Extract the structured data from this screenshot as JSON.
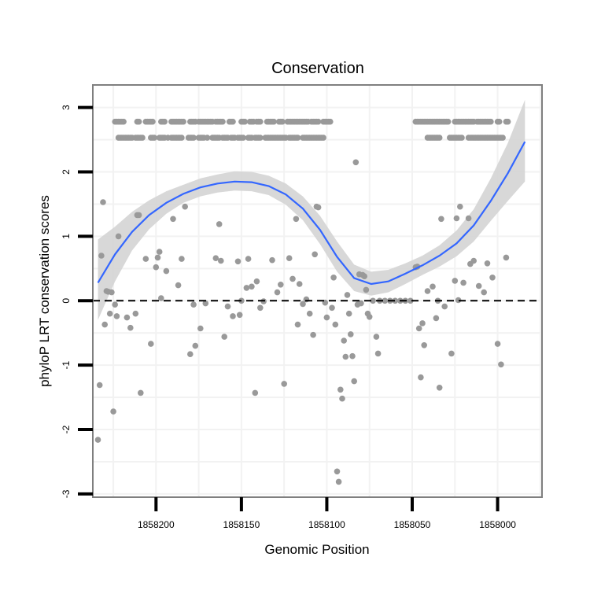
{
  "chart_data": {
    "type": "scatter",
    "title": "Conservation",
    "xlabel": "Genomic Position",
    "ylabel": "phyloP LRT conservation scores",
    "x_reversed": true,
    "xlim": [
      1858237,
      1857974
    ],
    "ylim": [
      -3.05,
      3.35
    ],
    "x_ticks": [
      1858200,
      1858150,
      1858100,
      1858050,
      1858000
    ],
    "x_tick_labels": [
      "1858200",
      "1858150",
      "1858100",
      "1858050",
      "1858000"
    ],
    "y_ticks": [
      3,
      2,
      1,
      0,
      -1,
      -2,
      -3
    ],
    "y_tick_labels": [
      "3",
      "2",
      "1",
      "0",
      "-1",
      "-2",
      "-3"
    ],
    "reference_line": {
      "y": 0,
      "style": "dashed"
    },
    "grid": true,
    "colors": {
      "points": "#999999",
      "smooth_line": "#3366ff",
      "confidence_band": "#d4d4d4",
      "panel_border": "#7f7f7f",
      "grid": "#f2f2f2"
    },
    "smooth": {
      "x": [
        1858234,
        1858224,
        1858214,
        1858204,
        1858194,
        1858184,
        1858174,
        1858164,
        1858154,
        1858144,
        1858134,
        1858124,
        1858114,
        1858104,
        1858094,
        1858084,
        1858074,
        1858064,
        1858054,
        1858044,
        1858034,
        1858024,
        1858014,
        1858004,
        1857994,
        1857984
      ],
      "y": [
        0.28,
        0.72,
        1.07,
        1.33,
        1.52,
        1.66,
        1.76,
        1.82,
        1.85,
        1.84,
        1.78,
        1.65,
        1.43,
        1.1,
        0.68,
        0.35,
        0.26,
        0.3,
        0.42,
        0.55,
        0.7,
        0.89,
        1.17,
        1.55,
        1.98,
        2.47
      ],
      "lower": [
        -0.3,
        0.3,
        0.78,
        1.11,
        1.35,
        1.52,
        1.62,
        1.68,
        1.71,
        1.7,
        1.64,
        1.49,
        1.25,
        0.88,
        0.45,
        0.15,
        0.08,
        0.13,
        0.26,
        0.4,
        0.53,
        0.69,
        0.92,
        1.24,
        1.55,
        1.85
      ],
      "upper": [
        0.95,
        1.15,
        1.38,
        1.56,
        1.7,
        1.8,
        1.9,
        1.96,
        2.01,
        2.0,
        1.94,
        1.82,
        1.62,
        1.32,
        0.92,
        0.56,
        0.45,
        0.48,
        0.58,
        0.7,
        0.86,
        1.09,
        1.42,
        1.9,
        2.45,
        3.12
      ]
    },
    "points": [
      {
        "x": 1858234,
        "y": -2.16
      },
      {
        "x": 1858233,
        "y": -1.31
      },
      {
        "x": 1858232,
        "y": 0.7
      },
      {
        "x": 1858231,
        "y": 1.53
      },
      {
        "x": 1858230,
        "y": -0.37
      },
      {
        "x": 1858229,
        "y": 0.15
      },
      {
        "x": 1858228,
        "y": 0.14
      },
      {
        "x": 1858227,
        "y": -0.2
      },
      {
        "x": 1858226,
        "y": 0.13
      },
      {
        "x": 1858225,
        "y": -1.72
      },
      {
        "x": 1858224,
        "y": -0.06
      },
      {
        "x": 1858223,
        "y": -0.24
      },
      {
        "x": 1858222,
        "y": 1.0
      },
      {
        "x": 1858217,
        "y": -0.26
      },
      {
        "x": 1858215,
        "y": -0.42
      },
      {
        "x": 1858212,
        "y": -0.2
      },
      {
        "x": 1858211,
        "y": 1.33
      },
      {
        "x": 1858210,
        "y": 1.33
      },
      {
        "x": 1858209,
        "y": -1.43
      },
      {
        "x": 1858206,
        "y": 0.65
      },
      {
        "x": 1858203,
        "y": -0.67
      },
      {
        "x": 1858200,
        "y": 0.52
      },
      {
        "x": 1858199,
        "y": 0.67
      },
      {
        "x": 1858198,
        "y": 0.76
      },
      {
        "x": 1858197,
        "y": 0.04
      },
      {
        "x": 1858194,
        "y": 0.46
      },
      {
        "x": 1858190,
        "y": 1.27
      },
      {
        "x": 1858187,
        "y": 0.24
      },
      {
        "x": 1858185,
        "y": 0.65
      },
      {
        "x": 1858183,
        "y": 1.46
      },
      {
        "x": 1858180,
        "y": -0.83
      },
      {
        "x": 1858178,
        "y": -0.06
      },
      {
        "x": 1858177,
        "y": -0.7
      },
      {
        "x": 1858174,
        "y": -0.43
      },
      {
        "x": 1858171,
        "y": -0.04
      },
      {
        "x": 1858165,
        "y": 0.66
      },
      {
        "x": 1858163,
        "y": 1.19
      },
      {
        "x": 1858162,
        "y": 0.62
      },
      {
        "x": 1858160,
        "y": -0.56
      },
      {
        "x": 1858158,
        "y": -0.09
      },
      {
        "x": 1858155,
        "y": -0.24
      },
      {
        "x": 1858152,
        "y": 0.61
      },
      {
        "x": 1858151,
        "y": -0.22
      },
      {
        "x": 1858150,
        "y": 0.0
      },
      {
        "x": 1858147,
        "y": 0.2
      },
      {
        "x": 1858146,
        "y": 0.65
      },
      {
        "x": 1858144,
        "y": 0.22
      },
      {
        "x": 1858142,
        "y": -1.43
      },
      {
        "x": 1858141,
        "y": 0.3
      },
      {
        "x": 1858139,
        "y": -0.11
      },
      {
        "x": 1858137,
        "y": -0.01
      },
      {
        "x": 1858132,
        "y": 0.63
      },
      {
        "x": 1858129,
        "y": 0.13
      },
      {
        "x": 1858127,
        "y": 0.25
      },
      {
        "x": 1858125,
        "y": -1.29
      },
      {
        "x": 1858122,
        "y": 0.66
      },
      {
        "x": 1858120,
        "y": 0.34
      },
      {
        "x": 1858118,
        "y": 1.27
      },
      {
        "x": 1858117,
        "y": -0.37
      },
      {
        "x": 1858116,
        "y": 0.26
      },
      {
        "x": 1858114,
        "y": -0.05
      },
      {
        "x": 1858112,
        "y": 0.02
      },
      {
        "x": 1858110,
        "y": -0.2
      },
      {
        "x": 1858108,
        "y": -0.53
      },
      {
        "x": 1858107,
        "y": 0.72
      },
      {
        "x": 1858106,
        "y": 1.46
      },
      {
        "x": 1858105,
        "y": 1.45
      },
      {
        "x": 1858101,
        "y": -0.03
      },
      {
        "x": 1858100,
        "y": -0.26
      },
      {
        "x": 1858097,
        "y": -0.11
      },
      {
        "x": 1858096,
        "y": 0.36
      },
      {
        "x": 1858095,
        "y": -0.37
      },
      {
        "x": 1858094,
        "y": -2.65
      },
      {
        "x": 1858093,
        "y": -2.81
      },
      {
        "x": 1858092,
        "y": -1.38
      },
      {
        "x": 1858091,
        "y": -1.52
      },
      {
        "x": 1858090,
        "y": -0.62
      },
      {
        "x": 1858089,
        "y": -0.87
      },
      {
        "x": 1858088,
        "y": 0.09
      },
      {
        "x": 1858087,
        "y": -0.2
      },
      {
        "x": 1858086,
        "y": -0.52
      },
      {
        "x": 1858085,
        "y": -0.86
      },
      {
        "x": 1858084,
        "y": -1.25
      },
      {
        "x": 1858083,
        "y": 2.15
      },
      {
        "x": 1858082,
        "y": -0.06
      },
      {
        "x": 1858081,
        "y": 0.41
      },
      {
        "x": 1858080,
        "y": -0.04
      },
      {
        "x": 1858079,
        "y": 0.4
      },
      {
        "x": 1858078,
        "y": 0.38
      },
      {
        "x": 1858077,
        "y": 0.17
      },
      {
        "x": 1858076,
        "y": -0.2
      },
      {
        "x": 1858075,
        "y": -0.25
      },
      {
        "x": 1858073,
        "y": 0.0
      },
      {
        "x": 1858071,
        "y": -0.56
      },
      {
        "x": 1858070,
        "y": -0.82
      },
      {
        "x": 1858069,
        "y": 0.0
      },
      {
        "x": 1858066,
        "y": 0.0
      },
      {
        "x": 1858063,
        "y": 0.0
      },
      {
        "x": 1858060,
        "y": 0.0
      },
      {
        "x": 1858057,
        "y": 0.0
      },
      {
        "x": 1858054,
        "y": 0.0
      },
      {
        "x": 1858051,
        "y": 0.0
      },
      {
        "x": 1858048,
        "y": 0.52
      },
      {
        "x": 1858047,
        "y": 0.53
      },
      {
        "x": 1858046,
        "y": -0.43
      },
      {
        "x": 1858045,
        "y": -1.19
      },
      {
        "x": 1858044,
        "y": -0.35
      },
      {
        "x": 1858043,
        "y": -0.69
      },
      {
        "x": 1858041,
        "y": 0.15
      },
      {
        "x": 1858038,
        "y": 0.22
      },
      {
        "x": 1858036,
        "y": -0.27
      },
      {
        "x": 1858035,
        "y": 0.0
      },
      {
        "x": 1858034,
        "y": -1.35
      },
      {
        "x": 1858033,
        "y": 1.27
      },
      {
        "x": 1858031,
        "y": -0.09
      },
      {
        "x": 1858027,
        "y": -0.82
      },
      {
        "x": 1858025,
        "y": 0.31
      },
      {
        "x": 1858024,
        "y": 1.28
      },
      {
        "x": 1858023,
        "y": 0.01
      },
      {
        "x": 1858022,
        "y": 1.46
      },
      {
        "x": 1858020,
        "y": 0.28
      },
      {
        "x": 1858017,
        "y": 1.28
      },
      {
        "x": 1858016,
        "y": 0.57
      },
      {
        "x": 1858014,
        "y": 0.62
      },
      {
        "x": 1858011,
        "y": 0.23
      },
      {
        "x": 1858008,
        "y": 0.13
      },
      {
        "x": 1858006,
        "y": 0.58
      },
      {
        "x": 1858003,
        "y": 0.36
      },
      {
        "x": 1858000,
        "y": -0.67
      },
      {
        "x": 1857998,
        "y": -0.99
      },
      {
        "x": 1857995,
        "y": 0.67
      }
    ],
    "upper_rows": [
      {
        "y": 2.78,
        "x": [
          1858224,
          1858223,
          1858222,
          1858221,
          1858220,
          1858219,
          1858211,
          1858210,
          1858206,
          1858205,
          1858204,
          1858203,
          1858202,
          1858197,
          1858196,
          1858195,
          1858191,
          1858190,
          1858189,
          1858188,
          1858187,
          1858186,
          1858185,
          1858184,
          1858180,
          1858179,
          1858178,
          1858177,
          1858175,
          1858174,
          1858173,
          1858172,
          1858171,
          1858170,
          1858169,
          1858168,
          1858167,
          1858165,
          1858164,
          1858163,
          1858162,
          1858161,
          1858157,
          1858156,
          1858155,
          1858150,
          1858149,
          1858148,
          1858145,
          1858144,
          1858143,
          1858141,
          1858140,
          1858139,
          1858135,
          1858134,
          1858133,
          1858132,
          1858131,
          1858128,
          1858127,
          1858126,
          1858123,
          1858122,
          1858121,
          1858120,
          1858119,
          1858118,
          1858117,
          1858116,
          1858115,
          1858114,
          1858113,
          1858112,
          1858111,
          1858109,
          1858108,
          1858107,
          1858106,
          1858105,
          1858102,
          1858101,
          1858100,
          1858099,
          1858098,
          1858048,
          1858047,
          1858046,
          1858045,
          1858044,
          1858043,
          1858042,
          1858041,
          1858040,
          1858039,
          1858038,
          1858037,
          1858036,
          1858035,
          1858034,
          1858033,
          1858032,
          1858031,
          1858030,
          1858029,
          1858025,
          1858024,
          1858023,
          1858022,
          1858021,
          1858020,
          1858019,
          1858018,
          1858017,
          1858016,
          1858015,
          1858014,
          1858012,
          1858011,
          1858010,
          1858009,
          1858008,
          1858007,
          1858006,
          1858005,
          1858004,
          1858000,
          1857999,
          1857995,
          1857994
        ]
      },
      {
        "y": 2.53,
        "x": [
          1858222,
          1858221,
          1858220,
          1858219,
          1858218,
          1858217,
          1858216,
          1858215,
          1858214,
          1858212,
          1858211,
          1858210,
          1858209,
          1858208,
          1858203,
          1858202,
          1858201,
          1858198,
          1858197,
          1858196,
          1858195,
          1858193,
          1858191,
          1858190,
          1858189,
          1858188,
          1858187,
          1858186,
          1858185,
          1858181,
          1858180,
          1858179,
          1858178,
          1858175,
          1858174,
          1858173,
          1858172,
          1858170,
          1858167,
          1858166,
          1858165,
          1858164,
          1858163,
          1858161,
          1858160,
          1858159,
          1858158,
          1858156,
          1858155,
          1858154,
          1858152,
          1858151,
          1858150,
          1858149,
          1858146,
          1858145,
          1858144,
          1858142,
          1858141,
          1858140,
          1858139,
          1858136,
          1858135,
          1858134,
          1858133,
          1858132,
          1858131,
          1858130,
          1858129,
          1858128,
          1858127,
          1858126,
          1858125,
          1858124,
          1858122,
          1858121,
          1858120,
          1858119,
          1858118,
          1858117,
          1858114,
          1858113,
          1858112,
          1858111,
          1858110,
          1858109,
          1858108,
          1858107,
          1858106,
          1858105,
          1858104,
          1858103,
          1858102,
          1858041,
          1858040,
          1858039,
          1858038,
          1858037,
          1858036,
          1858035,
          1858034,
          1858028,
          1858027,
          1858026,
          1858025,
          1858024,
          1858023,
          1858022,
          1858021,
          1858017,
          1858016,
          1858015,
          1858014,
          1858013,
          1858012,
          1858011,
          1858010,
          1858009,
          1858008,
          1858007,
          1858006,
          1858005,
          1858004,
          1858003,
          1858002,
          1858001,
          1858000,
          1857999,
          1857998,
          1857997
        ]
      }
    ]
  }
}
